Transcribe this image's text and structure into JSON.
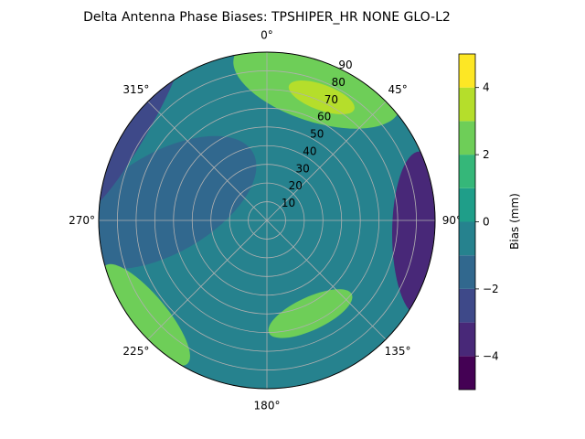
{
  "chart_data": {
    "type": "polar-contour",
    "title": "Delta Antenna Phase Biases: TPSHIPER_HR     NONE GLO-L2",
    "angle_ticks": [
      "0°",
      "45°",
      "90°",
      "135°",
      "180°",
      "225°",
      "270°",
      "315°"
    ],
    "radial_ticks": [
      "10",
      "20",
      "30",
      "40",
      "50",
      "60",
      "70",
      "80",
      "90"
    ],
    "radial_range": [
      0,
      90
    ],
    "angle_zero": "top",
    "angle_direction": "clockwise",
    "grid": true,
    "colorbar": {
      "label": "Bias (mm)",
      "ticks": [
        "−4",
        "−2",
        "0",
        "2",
        "4"
      ],
      "tick_values": [
        -4,
        -2,
        0,
        2,
        4
      ],
      "range": [
        -5,
        5
      ],
      "levels": [
        -5,
        -4,
        -3,
        -2,
        -1,
        0,
        1,
        2,
        3,
        4,
        5
      ],
      "colors": [
        "#440154",
        "#482878",
        "#3e4989",
        "#31688e",
        "#26828e",
        "#1f9e89",
        "#35b779",
        "#6ece58",
        "#b5de2b",
        "#fde725"
      ]
    },
    "features": [
      {
        "label": "high-ring-north",
        "az": 20,
        "zen": 78,
        "value": 2.5
      },
      {
        "label": "high-spot-north-northeast",
        "az": 24,
        "zen": 72,
        "value": 3.5
      },
      {
        "label": "low-band-east",
        "az": 95,
        "zen": 82,
        "value": -3.5
      },
      {
        "label": "low-lobe-west",
        "az": 280,
        "zen": 55,
        "value": -1.5
      },
      {
        "label": "high-patch-south-southeast",
        "az": 155,
        "zen": 55,
        "value": 2.0
      },
      {
        "label": "high-patch-southwest",
        "az": 232,
        "zen": 82,
        "value": 2.5
      },
      {
        "label": "low-edge-northwest",
        "az": 305,
        "zen": 86,
        "value": -2.5
      }
    ]
  }
}
